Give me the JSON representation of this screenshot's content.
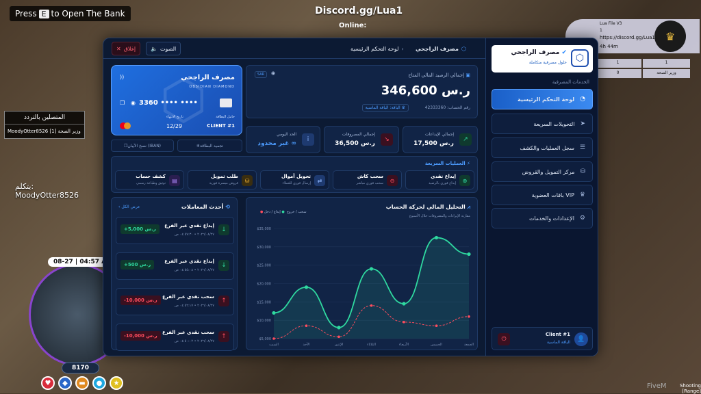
{
  "hud": {
    "press_pre": "Press",
    "press_key": "E",
    "press_post": "to Open The Bank",
    "server": "Discord.gg/Lua1",
    "online": "Online:",
    "connected_title": "المتصلين بالتردد",
    "connected_row": "MoodyOtter8526 [1] وزير الصحة",
    "speaking_label": "يتكلم:",
    "speaking_name": "MoodyOtter8526",
    "time": "08-27 | 04:57 AM",
    "cash": "8170",
    "fivem": "FiveM",
    "shooting": "Shooting [Range]",
    "tr_name": "Lua File V3",
    "tr_id": "1",
    "tr_url": "https://discord.gg/Lua1",
    "tr_time": "4h 44m",
    "tr_stat1": "1",
    "tr_stat2": "وزير الصحة",
    "tr_stat3": "0"
  },
  "topbar": {
    "close": "إغلاق",
    "sound": "الصوت",
    "crumb_bank": "مصرف الراجحي",
    "crumb_page": "لوحة التحكم الرئيسية"
  },
  "sidebar": {
    "brand_name": "مصرف الراجحي",
    "brand_sub": "حلول مصرفية متكاملة",
    "section": "الخدمات المصرفية",
    "items": [
      {
        "label": "لوحة التحكم الرئيسية",
        "icon": "pie-icon"
      },
      {
        "label": "التحويلات السريعة",
        "icon": "send-icon"
      },
      {
        "label": "سجل العمليات والكشف",
        "icon": "list-icon"
      },
      {
        "label": "مركز التمويل والقروض",
        "icon": "loan-icon"
      },
      {
        "label": "باقات العضوية VIP",
        "icon": "crown-icon"
      },
      {
        "label": "الإعدادات والخدمات",
        "icon": "gear-icon"
      }
    ],
    "client_name": "Client #1",
    "client_tier": "الباقة الماسية"
  },
  "card": {
    "bank": "مصرف الراجحي",
    "type": "OBSIDIAN DIAMOND",
    "number": "3360 •••• ••••",
    "exp_label": "تاريخ الانتهاء",
    "expiry": "12/29",
    "holder_label": "حامل البطاقة",
    "holder": "CLIENT #1",
    "freeze": "تجميد البطاقة",
    "copy_iban": "نسخ الآيبان (IBAN)"
  },
  "balance": {
    "label": "إجمالي الرصيد المالي المتاح",
    "value": "346,600 ر.س",
    "currency_tag": "SAR",
    "account": "رقم الحساب: 42333360",
    "tier": "الباقة: الباقة الماسية"
  },
  "stats": [
    {
      "label": "إجمالي الإيداعات",
      "value": "17,500 ر.س"
    },
    {
      "label": "إجمالي المصروفات",
      "value": "36,500 ر.س"
    },
    {
      "label": "الحد اليومي",
      "value": "غير محدود ∞"
    }
  ],
  "quick": {
    "title": "العمليات السريعة",
    "items": [
      {
        "label": "إيداع نقدي",
        "sub": "إيداع فوري بالرصيد"
      },
      {
        "label": "سحب كاش",
        "sub": "سحب فوري مباشر"
      },
      {
        "label": "تحويل أموال",
        "sub": "إرسال فوري للعملاء"
      },
      {
        "label": "طلب تمويل",
        "sub": "قروض ميسرة فورية"
      },
      {
        "label": "كشف حساب",
        "sub": "توثيق وطباعة رسمي"
      }
    ]
  },
  "transactions": {
    "title": "أحدث المعاملات",
    "view_all": "عرض الكل",
    "items": [
      {
        "title": "إيداع نقدي عبر الفرع",
        "date": "٢٠٢٦/٠٨/٢٧ • ٠٤:٥٧:٣٠ ص",
        "amount": "+5,000 ر.س",
        "type": "in"
      },
      {
        "title": "إيداع نقدي عبر الفرع",
        "date": "٢٠٢٦/٠٨/٢٧ • ٠٤:٥٥:٠٨ ص",
        "amount": "+500 ر.س",
        "type": "in"
      },
      {
        "title": "سحب نقدي عبر الفرع",
        "date": "٢٠٢٦/٠٨/٢٧ • ٠٤:٥٢:١٧ ص",
        "amount": "-10,000 ر.س",
        "type": "out"
      },
      {
        "title": "سحب نقدي عبر الفرع",
        "date": "٢٠٢٦/٠٨/٢٧ • ٠٤:٥٠:٠٢ ص",
        "amount": "-10,000 ر.س",
        "type": "out"
      }
    ]
  },
  "chart_data": {
    "type": "line",
    "title": "التحليل المالي لحركة الحساب",
    "subtitle": "مقارنة الإيرادات والمصروفات خلال الأسبوع",
    "categories": [
      "السبت",
      "الأحد",
      "الإثنين",
      "الثلاثاء",
      "الأربعاء",
      "الخميس",
      "الجمعة"
    ],
    "series": [
      {
        "name": "إيداع / دخل",
        "color": "#2fd9a0",
        "values": [
          12000,
          19000,
          8000,
          24000,
          14500,
          32500,
          28000
        ]
      },
      {
        "name": "سحب / خروج",
        "color": "#ff4d5e",
        "values": [
          5000,
          8500,
          5500,
          14000,
          9500,
          8500,
          11000
        ]
      }
    ],
    "y_ticks": [
      "$5,000",
      "$10,000",
      "$15,000",
      "$20,000",
      "$25,000",
      "$30,000",
      "$35,000"
    ],
    "ylim": [
      5000,
      35000
    ],
    "grid": true,
    "legend": "top-left"
  }
}
